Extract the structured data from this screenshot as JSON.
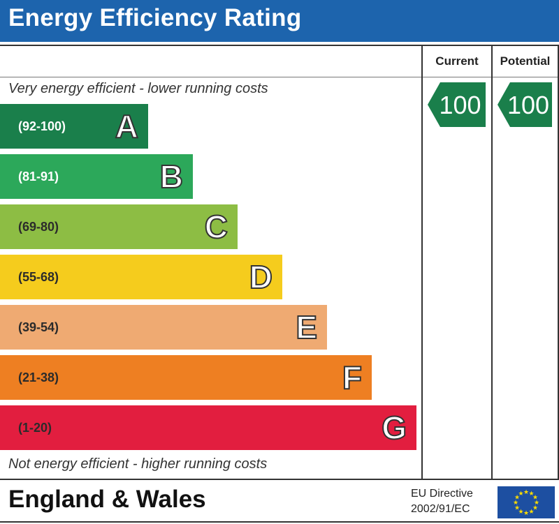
{
  "header": {
    "title": "Energy Efficiency Rating"
  },
  "columns": {
    "current": "Current",
    "potential": "Potential"
  },
  "captions": {
    "top": "Very energy efficient - lower running costs",
    "bottom": "Not energy efficient - higher running costs"
  },
  "chart_data": {
    "type": "bar",
    "bands": [
      {
        "range": "(92-100)",
        "letter": "A",
        "color": "#1a7f4b",
        "text_color": "#ffffff"
      },
      {
        "range": "(81-91)",
        "letter": "B",
        "color": "#2ca85a",
        "text_color": "#ffffff"
      },
      {
        "range": "(69-80)",
        "letter": "C",
        "color": "#8dbd44",
        "text_color": "#2b2b2b"
      },
      {
        "range": "(55-68)",
        "letter": "D",
        "color": "#f5cc1d",
        "text_color": "#2b2b2b"
      },
      {
        "range": "(39-54)",
        "letter": "E",
        "color": "#efaa72",
        "text_color": "#2b2b2b"
      },
      {
        "range": "(21-38)",
        "letter": "F",
        "color": "#ee7f22",
        "text_color": "#2b2b2b"
      },
      {
        "range": "(1-20)",
        "letter": "G",
        "color": "#e21e3f",
        "text_color": "#2b2b2b"
      }
    ],
    "current": {
      "value": "100",
      "band": "A"
    },
    "potential": {
      "value": "100",
      "band": "A"
    }
  },
  "footer": {
    "region": "England & Wales",
    "directive_line1": "EU Directive",
    "directive_line2": "2002/91/EC"
  }
}
